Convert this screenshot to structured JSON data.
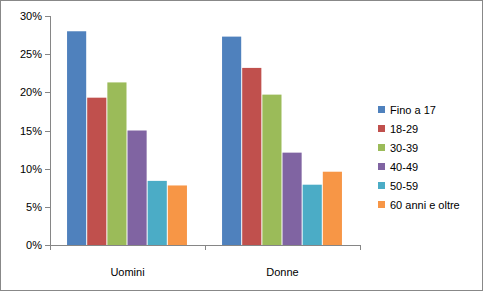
{
  "chart_data": {
    "type": "bar",
    "categories": [
      "Uomini",
      "Donne"
    ],
    "series": [
      {
        "name": "Fino a 17",
        "color": "#4F81BD",
        "values": [
          28.0,
          27.3
        ]
      },
      {
        "name": "18-29",
        "color": "#C0504D",
        "values": [
          19.3,
          23.2
        ]
      },
      {
        "name": "30-39",
        "color": "#9BBB59",
        "values": [
          21.3,
          19.7
        ]
      },
      {
        "name": "40-49",
        "color": "#8064A2",
        "values": [
          15.0,
          12.1
        ]
      },
      {
        "name": "50-59",
        "color": "#4BACC6",
        "values": [
          8.4,
          7.9
        ]
      },
      {
        "name": "60 anni e oltre",
        "color": "#F79646",
        "values": [
          7.8,
          9.6
        ]
      }
    ],
    "ylim": [
      0,
      30
    ],
    "yticks": [
      {
        "value": 0,
        "label": "0%"
      },
      {
        "value": 5,
        "label": "5%"
      },
      {
        "value": 10,
        "label": "10%"
      },
      {
        "value": 15,
        "label": "15%"
      },
      {
        "value": 20,
        "label": "20%"
      },
      {
        "value": 25,
        "label": "25%"
      },
      {
        "value": 30,
        "label": "30%"
      }
    ],
    "grid": false,
    "legend": "right"
  }
}
